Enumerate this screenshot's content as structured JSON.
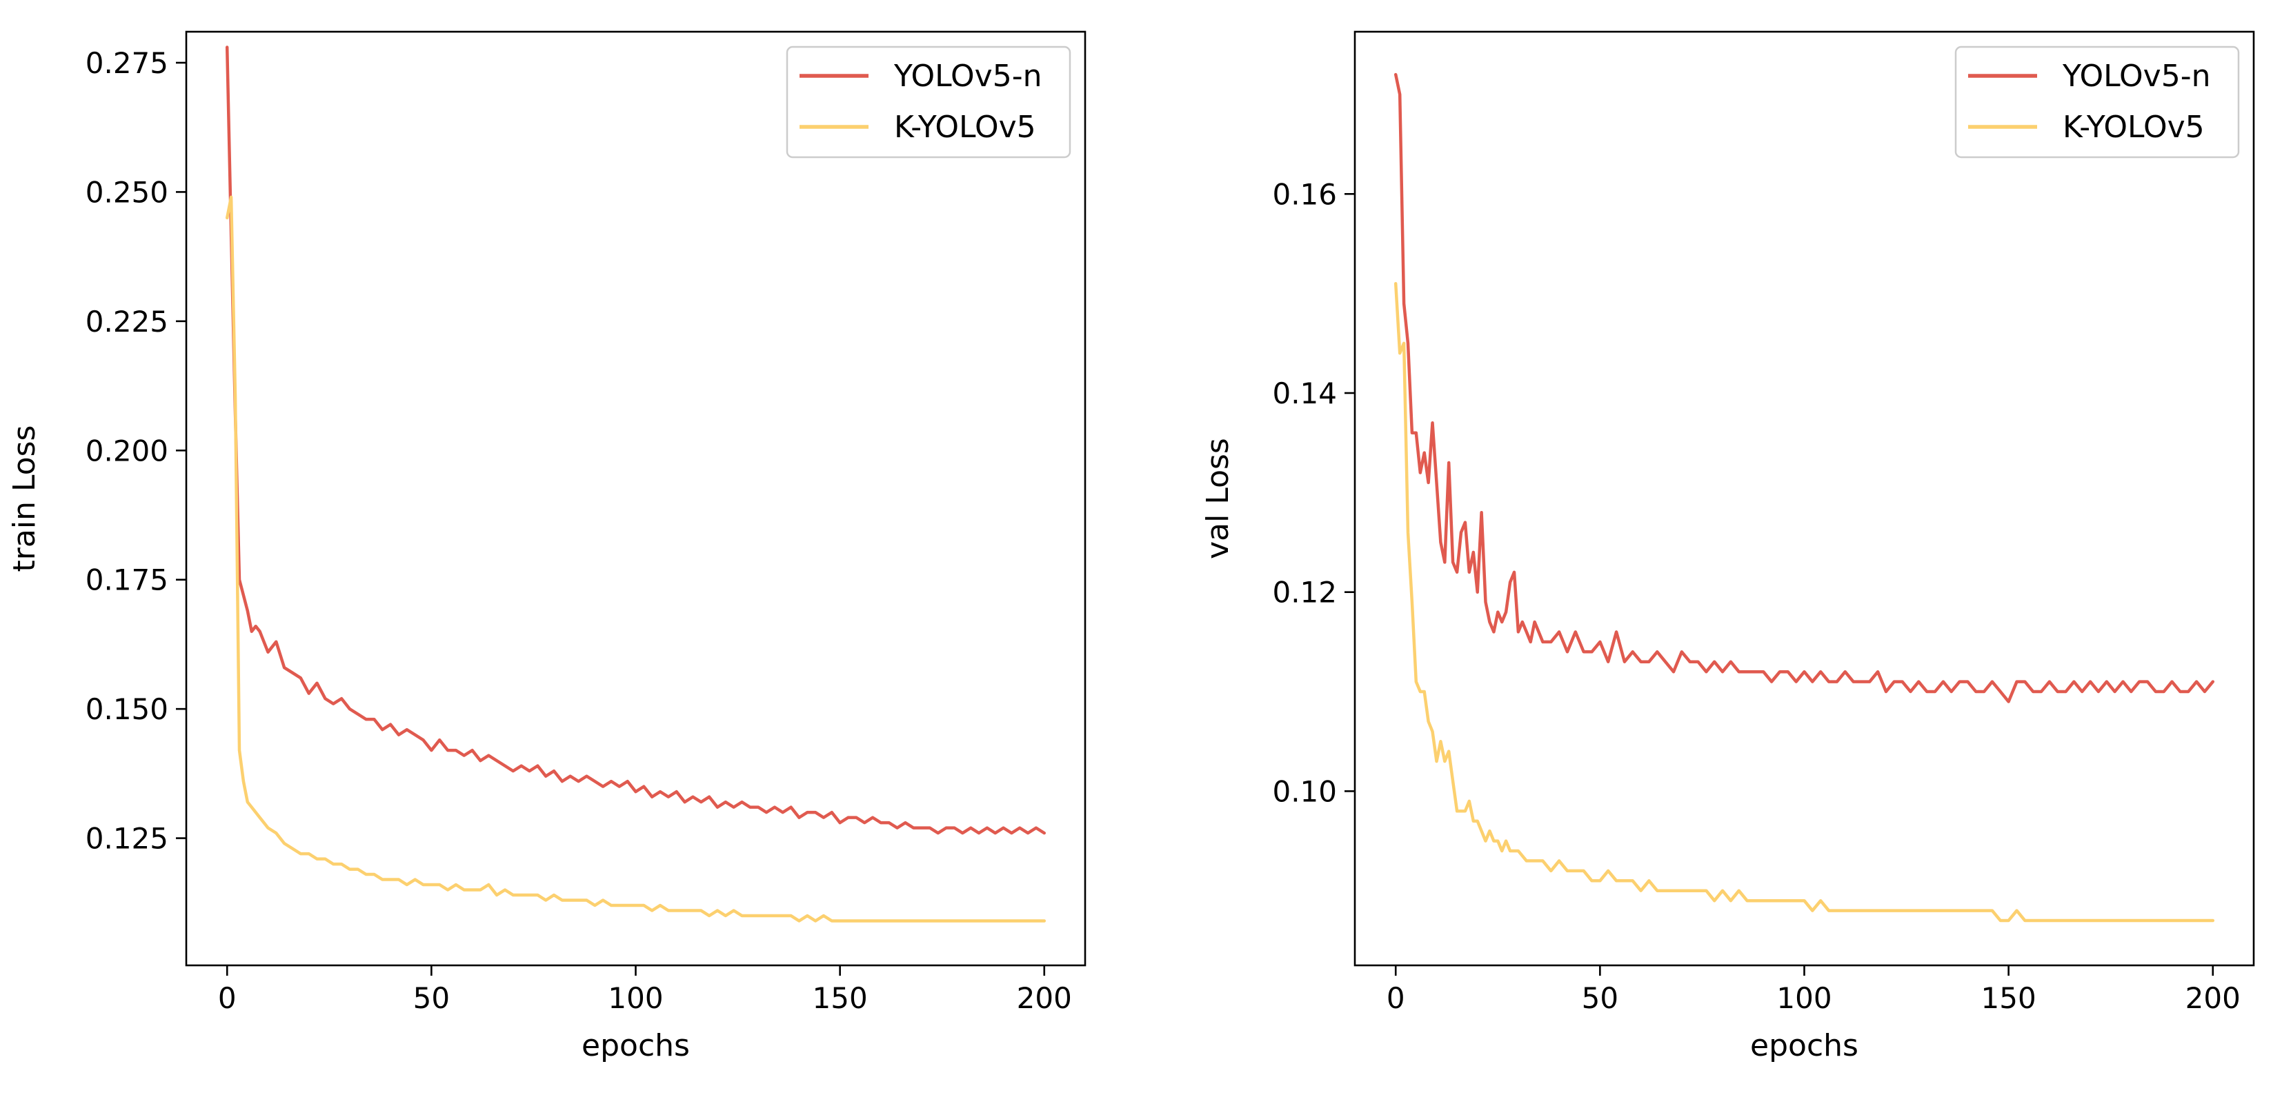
{
  "chart_data": [
    {
      "type": "line",
      "title": "",
      "xlabel": "epochs",
      "ylabel": "train Loss",
      "xlim": [
        -10,
        210
      ],
      "ylim": [
        0.1004,
        0.281
      ],
      "xticks": [
        0,
        50,
        100,
        150,
        200
      ],
      "xtick_labels": [
        "0",
        "50",
        "100",
        "150",
        "200"
      ],
      "yticks": [
        0.125,
        0.15,
        0.175,
        0.2,
        0.225,
        0.25,
        0.275
      ],
      "ytick_labels": [
        "0.125",
        "0.150",
        "0.175",
        "0.200",
        "0.225",
        "0.250",
        "0.275"
      ],
      "grid": false,
      "legend": "top-right",
      "series": [
        {
          "name": "YOLOv5-n",
          "color": "#e05a4f",
          "x": [
            0,
            1,
            2,
            3,
            4,
            5,
            6,
            7,
            8,
            10,
            12,
            14,
            16,
            18,
            20,
            22,
            24,
            26,
            28,
            30,
            32,
            34,
            36,
            38,
            40,
            42,
            44,
            46,
            48,
            50,
            52,
            54,
            56,
            58,
            60,
            62,
            64,
            66,
            68,
            70,
            72,
            74,
            76,
            78,
            80,
            82,
            84,
            86,
            88,
            90,
            92,
            94,
            96,
            98,
            100,
            102,
            104,
            106,
            108,
            110,
            112,
            114,
            116,
            118,
            120,
            122,
            124,
            126,
            128,
            130,
            132,
            134,
            136,
            138,
            140,
            142,
            144,
            146,
            148,
            150,
            152,
            154,
            156,
            158,
            160,
            162,
            164,
            166,
            168,
            170,
            172,
            174,
            176,
            178,
            180,
            182,
            184,
            186,
            188,
            190,
            192,
            194,
            196,
            198,
            200
          ],
          "y": [
            0.278,
            0.242,
            0.207,
            0.175,
            0.172,
            0.169,
            0.165,
            0.166,
            0.165,
            0.161,
            0.163,
            0.158,
            0.157,
            0.156,
            0.153,
            0.155,
            0.152,
            0.151,
            0.152,
            0.15,
            0.149,
            0.148,
            0.148,
            0.146,
            0.147,
            0.145,
            0.146,
            0.145,
            0.144,
            0.142,
            0.144,
            0.142,
            0.142,
            0.141,
            0.142,
            0.14,
            0.141,
            0.14,
            0.139,
            0.138,
            0.139,
            0.138,
            0.139,
            0.137,
            0.138,
            0.136,
            0.137,
            0.136,
            0.137,
            0.136,
            0.135,
            0.136,
            0.135,
            0.136,
            0.134,
            0.135,
            0.133,
            0.134,
            0.133,
            0.134,
            0.132,
            0.133,
            0.132,
            0.133,
            0.131,
            0.132,
            0.131,
            0.132,
            0.131,
            0.131,
            0.13,
            0.131,
            0.13,
            0.131,
            0.129,
            0.13,
            0.13,
            0.129,
            0.13,
            0.128,
            0.129,
            0.129,
            0.128,
            0.129,
            0.128,
            0.128,
            0.127,
            0.128,
            0.127,
            0.127,
            0.127,
            0.126,
            0.127,
            0.127,
            0.126,
            0.127,
            0.126,
            0.127,
            0.126,
            0.127,
            0.126,
            0.127,
            0.126,
            0.127,
            0.126
          ]
        },
        {
          "name": "K-YOLOv5",
          "color": "#fcd06f",
          "x": [
            0,
            1,
            2,
            3,
            4,
            5,
            6,
            7,
            8,
            10,
            12,
            14,
            16,
            18,
            20,
            22,
            24,
            26,
            28,
            30,
            32,
            34,
            36,
            38,
            40,
            42,
            44,
            46,
            48,
            50,
            52,
            54,
            56,
            58,
            60,
            62,
            64,
            66,
            68,
            70,
            72,
            74,
            76,
            78,
            80,
            82,
            84,
            86,
            88,
            90,
            92,
            94,
            96,
            98,
            100,
            102,
            104,
            106,
            108,
            110,
            112,
            114,
            116,
            118,
            120,
            122,
            124,
            126,
            128,
            130,
            132,
            134,
            136,
            138,
            140,
            142,
            144,
            146,
            148,
            150,
            152,
            154,
            156,
            158,
            160,
            162,
            164,
            166,
            168,
            170,
            172,
            174,
            176,
            178,
            180,
            182,
            184,
            186,
            188,
            190,
            192,
            194,
            196,
            198,
            200
          ],
          "y": [
            0.245,
            0.249,
            0.21,
            0.142,
            0.136,
            0.132,
            0.131,
            0.13,
            0.129,
            0.127,
            0.126,
            0.124,
            0.123,
            0.122,
            0.122,
            0.121,
            0.121,
            0.12,
            0.12,
            0.119,
            0.119,
            0.118,
            0.118,
            0.117,
            0.117,
            0.117,
            0.116,
            0.117,
            0.116,
            0.116,
            0.116,
            0.115,
            0.116,
            0.115,
            0.115,
            0.115,
            0.116,
            0.114,
            0.115,
            0.114,
            0.114,
            0.114,
            0.114,
            0.113,
            0.114,
            0.113,
            0.113,
            0.113,
            0.113,
            0.112,
            0.113,
            0.112,
            0.112,
            0.112,
            0.112,
            0.112,
            0.111,
            0.112,
            0.111,
            0.111,
            0.111,
            0.111,
            0.111,
            0.11,
            0.111,
            0.11,
            0.111,
            0.11,
            0.11,
            0.11,
            0.11,
            0.11,
            0.11,
            0.11,
            0.109,
            0.11,
            0.109,
            0.11,
            0.109,
            0.109,
            0.109,
            0.109,
            0.109,
            0.109,
            0.109,
            0.109,
            0.109,
            0.109,
            0.109,
            0.109,
            0.109,
            0.109,
            0.109,
            0.109,
            0.109,
            0.109,
            0.109,
            0.109,
            0.109,
            0.109,
            0.109,
            0.109,
            0.109,
            0.109,
            0.109
          ]
        }
      ]
    },
    {
      "type": "line",
      "title": "",
      "xlabel": "epochs",
      "ylabel": "val Loss",
      "xlim": [
        -10,
        210
      ],
      "ylim": [
        0.0825,
        0.1763
      ],
      "xticks": [
        0,
        50,
        100,
        150,
        200
      ],
      "xtick_labels": [
        "0",
        "50",
        "100",
        "150",
        "200"
      ],
      "yticks": [
        0.1,
        0.12,
        0.14,
        0.16
      ],
      "ytick_labels": [
        "0.10",
        "0.12",
        "0.14",
        "0.16"
      ],
      "grid": false,
      "legend": "top-right",
      "series": [
        {
          "name": "YOLOv5-n",
          "color": "#e05a4f",
          "x": [
            0,
            1,
            2,
            3,
            4,
            5,
            6,
            7,
            8,
            9,
            10,
            11,
            12,
            13,
            14,
            15,
            16,
            17,
            18,
            19,
            20,
            21,
            22,
            23,
            24,
            25,
            26,
            27,
            28,
            29,
            30,
            31,
            32,
            33,
            34,
            35,
            36,
            38,
            40,
            42,
            44,
            46,
            48,
            50,
            52,
            54,
            56,
            58,
            60,
            62,
            64,
            66,
            68,
            70,
            72,
            74,
            76,
            78,
            80,
            82,
            84,
            86,
            88,
            90,
            92,
            94,
            96,
            98,
            100,
            102,
            104,
            106,
            108,
            110,
            112,
            114,
            116,
            118,
            120,
            122,
            124,
            126,
            128,
            130,
            132,
            134,
            136,
            138,
            140,
            142,
            144,
            146,
            148,
            150,
            152,
            154,
            156,
            158,
            160,
            162,
            164,
            166,
            168,
            170,
            172,
            174,
            176,
            178,
            180,
            182,
            184,
            186,
            188,
            190,
            192,
            194,
            196,
            198,
            200
          ],
          "y": [
            0.172,
            0.17,
            0.149,
            0.145,
            0.136,
            0.136,
            0.132,
            0.134,
            0.131,
            0.137,
            0.131,
            0.125,
            0.123,
            0.133,
            0.123,
            0.122,
            0.126,
            0.127,
            0.122,
            0.124,
            0.12,
            0.128,
            0.119,
            0.117,
            0.116,
            0.118,
            0.117,
            0.118,
            0.121,
            0.122,
            0.116,
            0.117,
            0.116,
            0.115,
            0.117,
            0.116,
            0.115,
            0.115,
            0.116,
            0.114,
            0.116,
            0.114,
            0.114,
            0.115,
            0.113,
            0.116,
            0.113,
            0.114,
            0.113,
            0.113,
            0.114,
            0.113,
            0.112,
            0.114,
            0.113,
            0.113,
            0.112,
            0.113,
            0.112,
            0.113,
            0.112,
            0.112,
            0.112,
            0.112,
            0.111,
            0.112,
            0.112,
            0.111,
            0.112,
            0.111,
            0.112,
            0.111,
            0.111,
            0.112,
            0.111,
            0.111,
            0.111,
            0.112,
            0.11,
            0.111,
            0.111,
            0.11,
            0.111,
            0.11,
            0.11,
            0.111,
            0.11,
            0.111,
            0.111,
            0.11,
            0.11,
            0.111,
            0.11,
            0.109,
            0.111,
            0.111,
            0.11,
            0.11,
            0.111,
            0.11,
            0.11,
            0.111,
            0.11,
            0.111,
            0.11,
            0.111,
            0.11,
            0.111,
            0.11,
            0.111,
            0.111,
            0.11,
            0.11,
            0.111,
            0.11,
            0.11,
            0.111,
            0.11,
            0.111
          ]
        },
        {
          "name": "K-YOLOv5",
          "color": "#fcd06f",
          "x": [
            0,
            1,
            2,
            3,
            4,
            5,
            6,
            7,
            8,
            9,
            10,
            11,
            12,
            13,
            14,
            15,
            16,
            17,
            18,
            19,
            20,
            21,
            22,
            23,
            24,
            25,
            26,
            27,
            28,
            29,
            30,
            32,
            34,
            36,
            38,
            40,
            42,
            44,
            46,
            48,
            50,
            52,
            54,
            56,
            58,
            60,
            62,
            64,
            66,
            68,
            70,
            72,
            74,
            76,
            78,
            80,
            82,
            84,
            86,
            88,
            90,
            92,
            94,
            96,
            98,
            100,
            102,
            104,
            106,
            108,
            110,
            112,
            114,
            116,
            118,
            120,
            122,
            124,
            126,
            128,
            130,
            132,
            134,
            136,
            138,
            140,
            142,
            144,
            146,
            148,
            150,
            152,
            154,
            156,
            158,
            160,
            162,
            164,
            166,
            168,
            170,
            172,
            174,
            176,
            178,
            180,
            182,
            184,
            186,
            188,
            190,
            192,
            194,
            196,
            198,
            200
          ],
          "y": [
            0.151,
            0.144,
            0.145,
            0.126,
            0.119,
            0.111,
            0.11,
            0.11,
            0.107,
            0.106,
            0.103,
            0.105,
            0.103,
            0.104,
            0.101,
            0.098,
            0.098,
            0.098,
            0.099,
            0.097,
            0.097,
            0.096,
            0.095,
            0.096,
            0.095,
            0.095,
            0.094,
            0.095,
            0.094,
            0.094,
            0.094,
            0.093,
            0.093,
            0.093,
            0.092,
            0.093,
            0.092,
            0.092,
            0.092,
            0.091,
            0.091,
            0.092,
            0.091,
            0.091,
            0.091,
            0.09,
            0.091,
            0.09,
            0.09,
            0.09,
            0.09,
            0.09,
            0.09,
            0.09,
            0.089,
            0.09,
            0.089,
            0.09,
            0.089,
            0.089,
            0.089,
            0.089,
            0.089,
            0.089,
            0.089,
            0.089,
            0.088,
            0.089,
            0.088,
            0.088,
            0.088,
            0.088,
            0.088,
            0.088,
            0.088,
            0.088,
            0.088,
            0.088,
            0.088,
            0.088,
            0.088,
            0.088,
            0.088,
            0.088,
            0.088,
            0.088,
            0.088,
            0.088,
            0.088,
            0.087,
            0.087,
            0.088,
            0.087,
            0.087,
            0.087,
            0.087,
            0.087,
            0.087,
            0.087,
            0.087,
            0.087,
            0.087,
            0.087,
            0.087,
            0.087,
            0.087,
            0.087,
            0.087,
            0.087,
            0.087,
            0.087,
            0.087,
            0.087,
            0.087,
            0.087,
            0.087
          ]
        }
      ]
    }
  ]
}
